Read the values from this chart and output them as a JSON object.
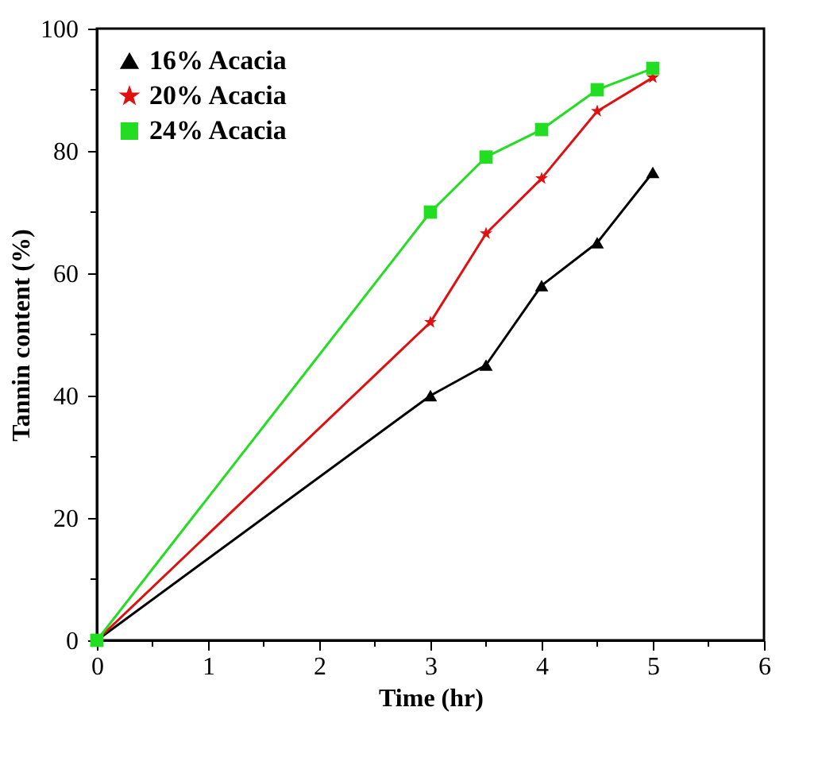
{
  "chart_data": {
    "type": "line",
    "xlabel": "Time (hr)",
    "ylabel": "Tannin content (%)",
    "x": [
      0,
      3,
      3.5,
      4,
      4.5,
      5
    ],
    "series": [
      {
        "name": "16% Acacia",
        "color": "#000000",
        "marker": "triangle",
        "values": [
          0,
          40,
          45,
          58,
          65,
          76.5
        ]
      },
      {
        "name": "20% Acacia",
        "color": "#e01010",
        "marker": "star",
        "values": [
          0,
          52,
          66.5,
          75.5,
          86.5,
          92
        ]
      },
      {
        "name": "24% Acacia",
        "color": "#22dd22",
        "marker": "square",
        "values": [
          0,
          70,
          79,
          83.5,
          90,
          93.5
        ]
      }
    ],
    "xlim": [
      0,
      6
    ],
    "xticks": [
      0,
      {
        "value": 0.5,
        "label": null
      },
      1,
      {
        "value": 1.5,
        "label": null
      },
      2,
      {
        "value": 2.5,
        "label": null
      },
      3,
      {
        "value": 3.5,
        "label": null
      },
      4,
      {
        "value": 4.5,
        "label": null
      },
      5,
      {
        "value": 5.5,
        "label": null
      },
      6
    ],
    "ylim": [
      0,
      100
    ],
    "yticks": [
      0,
      {
        "value": 10,
        "label": null
      },
      20,
      {
        "value": 30,
        "label": null
      },
      40,
      {
        "value": 50,
        "label": null
      },
      60,
      {
        "value": 70,
        "label": null
      },
      80,
      {
        "value": 90,
        "label": null
      },
      100
    ],
    "grid": false,
    "legend": "top left",
    "line_style": "solid"
  }
}
